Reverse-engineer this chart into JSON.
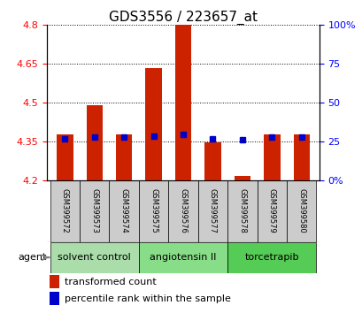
{
  "title": "GDS3556 / 223657_at",
  "samples": [
    "GSM399572",
    "GSM399573",
    "GSM399574",
    "GSM399575",
    "GSM399576",
    "GSM399577",
    "GSM399578",
    "GSM399579",
    "GSM399580"
  ],
  "red_values": [
    4.375,
    4.49,
    4.375,
    4.635,
    4.8,
    4.345,
    4.215,
    4.375,
    4.375
  ],
  "blue_values": [
    4.36,
    4.365,
    4.365,
    4.37,
    4.375,
    4.36,
    4.355,
    4.365,
    4.365
  ],
  "ylim": [
    4.2,
    4.8
  ],
  "yticks_left": [
    4.2,
    4.35,
    4.5,
    4.65,
    4.8
  ],
  "yticks_right_pct": [
    0,
    25,
    50,
    75,
    100
  ],
  "ytick_labels_right": [
    "0",
    "25",
    "50",
    "75",
    "100%"
  ],
  "ytick_label_0pct": "0%",
  "groups": [
    {
      "label": "solvent control",
      "start": 0,
      "end": 2,
      "color": "#aaddaa"
    },
    {
      "label": "angiotensin II",
      "start": 3,
      "end": 5,
      "color": "#88dd88"
    },
    {
      "label": "torcetrapib",
      "start": 6,
      "end": 8,
      "color": "#55cc55"
    }
  ],
  "bar_color": "#cc2200",
  "blue_color": "#0000cc",
  "bar_bottom": 4.2,
  "agent_label": "agent",
  "legend_red": "transformed count",
  "legend_blue": "percentile rank within the sample",
  "title_fontsize": 11,
  "tick_fontsize": 8,
  "sample_fontsize": 6,
  "group_fontsize": 8,
  "legend_fontsize": 8
}
